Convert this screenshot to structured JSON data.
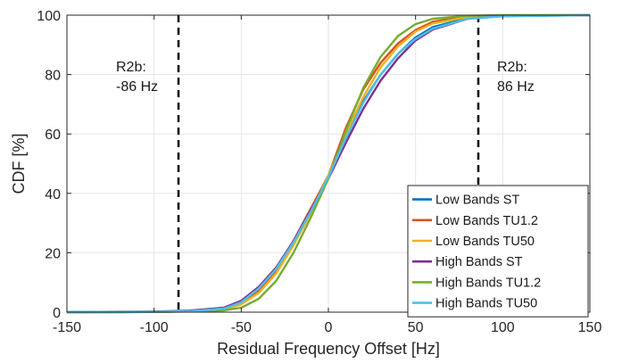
{
  "chart_data": {
    "type": "line",
    "title": "",
    "xlabel": "Residual Frequency Offset [Hz]",
    "ylabel": "CDF [%]",
    "xlim": [
      -150,
      150
    ],
    "ylim": [
      0,
      100
    ],
    "xticks": [
      -150,
      -100,
      -50,
      0,
      50,
      100,
      150
    ],
    "yticks": [
      0,
      20,
      40,
      60,
      80,
      100
    ],
    "xtick_labels": [
      "-150",
      "-100",
      "-50",
      "0",
      "50",
      "100",
      "150"
    ],
    "ytick_labels": [
      "0",
      "20",
      "40",
      "60",
      "80",
      "100"
    ],
    "grid": true,
    "legend_placement": "bottom-right",
    "reference_lines": [
      {
        "x": -86,
        "label_line1": "R2b:",
        "label_line2": "-86 Hz"
      },
      {
        "x": 86,
        "label_line1": "R2b:",
        "label_line2": "86 Hz"
      }
    ],
    "series": [
      {
        "name": "Low Bands ST",
        "color": "#0072BD",
        "x": [
          -150,
          -100,
          -80,
          -60,
          -50,
          -40,
          -30,
          -20,
          -10,
          0,
          10,
          20,
          30,
          40,
          50,
          60,
          80,
          100,
          150
        ],
        "y": [
          0,
          0.1,
          0.3,
          1.0,
          3.0,
          7.5,
          14,
          23.5,
          34,
          45.5,
          59,
          71,
          80,
          87,
          92.5,
          96,
          99,
          99.8,
          100
        ]
      },
      {
        "name": "Low Bands TU1.2",
        "color": "#D95319",
        "x": [
          -150,
          -120,
          -100,
          -80,
          -60,
          -50,
          -40,
          -30,
          -20,
          -10,
          0,
          10,
          20,
          30,
          40,
          50,
          60,
          80,
          100,
          150
        ],
        "y": [
          0,
          0,
          0.1,
          0.3,
          1.0,
          2.8,
          7,
          14,
          24,
          35,
          46,
          62,
          75,
          84,
          90.5,
          95,
          97.8,
          99.6,
          99.9,
          100
        ]
      },
      {
        "name": "Low Bands TU50",
        "color": "#EDB120",
        "x": [
          -150,
          -100,
          -80,
          -60,
          -50,
          -40,
          -30,
          -20,
          -10,
          0,
          10,
          20,
          30,
          40,
          50,
          60,
          80,
          100,
          150
        ],
        "y": [
          0,
          0.1,
          0.3,
          0.9,
          2.6,
          6.5,
          13,
          22.5,
          33.5,
          46,
          60,
          72.5,
          82.5,
          89.5,
          94.5,
          97.2,
          99.4,
          99.9,
          100
        ]
      },
      {
        "name": "High Bands ST",
        "color": "#7E2F8E",
        "x": [
          -150,
          -100,
          -80,
          -60,
          -50,
          -40,
          -30,
          -20,
          -10,
          0,
          10,
          20,
          30,
          40,
          50,
          60,
          80,
          100,
          150
        ],
        "y": [
          0,
          0.2,
          0.5,
          1.5,
          3.8,
          8.5,
          15,
          24,
          34.5,
          45,
          57,
          68.5,
          78,
          85.5,
          91.5,
          95.2,
          98.8,
          99.7,
          100
        ]
      },
      {
        "name": "High Bands TU1.2",
        "color": "#77AC30",
        "x": [
          -150,
          -100,
          -80,
          -60,
          -50,
          -40,
          -30,
          -20,
          -10,
          0,
          10,
          20,
          30,
          40,
          50,
          60,
          80,
          100,
          150
        ],
        "y": [
          0,
          0.1,
          0.2,
          0.6,
          1.5,
          4.5,
          10.5,
          20,
          32,
          45,
          61,
          75.5,
          86,
          93,
          97,
          98.8,
          99.8,
          100,
          100
        ]
      },
      {
        "name": "High Bands TU50",
        "color": "#4DBEEE",
        "x": [
          -150,
          -120,
          -100,
          -80,
          -60,
          -50,
          -40,
          -30,
          -20,
          -10,
          0,
          10,
          20,
          30,
          40,
          50,
          60,
          80,
          100,
          150
        ],
        "y": [
          0,
          0,
          0.1,
          0.3,
          1.2,
          3.3,
          8,
          14.5,
          23.5,
          34,
          45.5,
          58.5,
          70.5,
          80,
          87,
          92,
          95.5,
          98.8,
          99.6,
          100
        ]
      }
    ]
  }
}
